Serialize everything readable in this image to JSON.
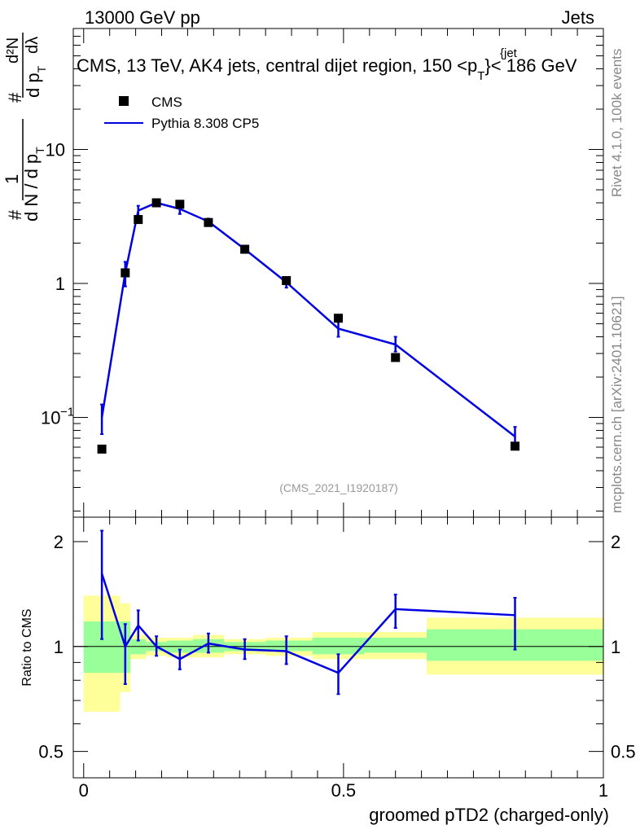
{
  "header": {
    "energy_label": "13000 GeV pp",
    "category_label": "Jets"
  },
  "side_text": {
    "rivet": "Rivet 4.1.0,  100k events",
    "mcplots": "mcplots.cern.ch [arXiv:2401.10621]"
  },
  "chart_data": [
    {
      "type": "line",
      "panel": "main",
      "title": "CMS, 13 TeV, AK4 jets, central dijet region, 150 <p_T^{jet}< 186 GeV",
      "title_parts": {
        "prefix": "CMS, 13 TeV, AK4 jets, central dijet region, 150 <p",
        "sub": "T",
        "sup": "{jet",
        "suffix": "}< 186 GeV"
      },
      "ylabel": "1/(dN/dp_T) d²N/(dp_T dλ)",
      "ylabel_parts": {
        "hash": "#",
        "one": "1",
        "dn_dpt": "d N / d p",
        "d2n": "d²N",
        "dpt_dl": "d p",
        "dl": "dλ",
        "t": "T"
      },
      "yscale": "log",
      "ylim": [
        0.018,
        80
      ],
      "xlim": [
        -0.02,
        1.0
      ],
      "y_ticks": [
        {
          "v": 0.1,
          "base": "10",
          "exp": "−1"
        },
        {
          "v": 1,
          "label": "1"
        },
        {
          "v": 10,
          "label": "10"
        }
      ],
      "watermark": "(CMS_2021_I1920187)",
      "legend": {
        "position": "top-left",
        "entries": [
          "CMS",
          "Pythia 8.308 CP5"
        ]
      },
      "series": [
        {
          "name": "CMS",
          "style": "markers",
          "color": "#000000",
          "x": [
            0.035,
            0.08,
            0.105,
            0.14,
            0.185,
            0.24,
            0.31,
            0.39,
            0.49,
            0.6,
            0.83
          ],
          "y": [
            0.058,
            1.2,
            3.0,
            4.0,
            3.9,
            2.85,
            1.8,
            1.05,
            0.55,
            0.28,
            0.061
          ]
        },
        {
          "name": "Pythia 8.308 CP5",
          "style": "line",
          "color": "#0000e0",
          "x": [
            0.035,
            0.08,
            0.105,
            0.14,
            0.185,
            0.24,
            0.31,
            0.39,
            0.49,
            0.6,
            0.83
          ],
          "y": [
            0.1,
            1.2,
            3.5,
            4.0,
            3.6,
            2.9,
            1.8,
            1.02,
            0.46,
            0.35,
            0.072
          ],
          "yerr_low": [
            0.075,
            0.95,
            3.2,
            3.85,
            3.3,
            2.75,
            1.7,
            0.93,
            0.4,
            0.31,
            0.062
          ],
          "yerr_high": [
            0.125,
            1.45,
            3.8,
            4.15,
            3.9,
            3.05,
            1.9,
            1.11,
            0.52,
            0.4,
            0.085
          ]
        }
      ]
    },
    {
      "type": "line",
      "panel": "ratio",
      "ylabel": "Ratio to CMS",
      "xlabel": "groomed pTD2 (charged-only)",
      "yscale": "log",
      "ylim": [
        0.42,
        2.35
      ],
      "xlim": [
        -0.02,
        1.0
      ],
      "y_ticks": [
        0.5,
        1,
        2
      ],
      "x_ticks": [
        0,
        0.5,
        1
      ],
      "x_tick_labels": [
        "0",
        "0.5",
        "1"
      ],
      "y_tick_labels": [
        "0.5",
        "1",
        "2"
      ],
      "bands": [
        {
          "x0": 0.0,
          "x1": 0.07,
          "y_lo": 0.65,
          "y_hi": 1.4,
          "g_lo": 0.84,
          "g_hi": 1.18
        },
        {
          "x0": 0.07,
          "x1": 0.09,
          "y_lo": 0.74,
          "y_hi": 1.33,
          "g_lo": 0.84,
          "g_hi": 1.18
        },
        {
          "x0": 0.09,
          "x1": 0.12,
          "y_lo": 0.92,
          "y_hi": 1.08,
          "g_lo": 0.95,
          "g_hi": 1.05
        },
        {
          "x0": 0.12,
          "x1": 0.16,
          "y_lo": 0.94,
          "y_hi": 1.06,
          "g_lo": 0.97,
          "g_hi": 1.03
        },
        {
          "x0": 0.16,
          "x1": 0.21,
          "y_lo": 0.93,
          "y_hi": 1.06,
          "g_lo": 0.96,
          "g_hi": 1.04
        },
        {
          "x0": 0.21,
          "x1": 0.27,
          "y_lo": 0.93,
          "y_hi": 1.08,
          "g_lo": 0.96,
          "g_hi": 1.05
        },
        {
          "x0": 0.27,
          "x1": 0.35,
          "y_lo": 0.95,
          "y_hi": 1.05,
          "g_lo": 0.97,
          "g_hi": 1.03
        },
        {
          "x0": 0.35,
          "x1": 0.44,
          "y_lo": 0.94,
          "y_hi": 1.06,
          "g_lo": 0.97,
          "g_hi": 1.04
        },
        {
          "x0": 0.44,
          "x1": 0.54,
          "y_lo": 0.92,
          "y_hi": 1.1,
          "g_lo": 0.95,
          "g_hi": 1.06
        },
        {
          "x0": 0.54,
          "x1": 0.66,
          "y_lo": 0.92,
          "y_hi": 1.1,
          "g_lo": 0.96,
          "g_hi": 1.06
        },
        {
          "x0": 0.66,
          "x1": 1.0,
          "y_lo": 0.83,
          "y_hi": 1.21,
          "g_lo": 0.91,
          "g_hi": 1.12
        }
      ],
      "series": [
        {
          "name": "Pythia 8.308 CP5 / CMS",
          "color": "#0000e0",
          "x": [
            0.035,
            0.08,
            0.105,
            0.14,
            0.185,
            0.24,
            0.31,
            0.39,
            0.49,
            0.6,
            0.83
          ],
          "y": [
            1.62,
            1.0,
            1.15,
            1.0,
            0.92,
            1.02,
            0.98,
            0.97,
            0.84,
            1.28,
            1.23
          ],
          "yerr_low": [
            1.05,
            0.78,
            1.04,
            0.94,
            0.86,
            0.96,
            0.92,
            0.89,
            0.73,
            1.13,
            0.98
          ],
          "yerr_high": [
            2.15,
            1.16,
            1.27,
            1.07,
            0.98,
            1.09,
            1.05,
            1.07,
            0.95,
            1.41,
            1.38
          ]
        }
      ]
    }
  ]
}
